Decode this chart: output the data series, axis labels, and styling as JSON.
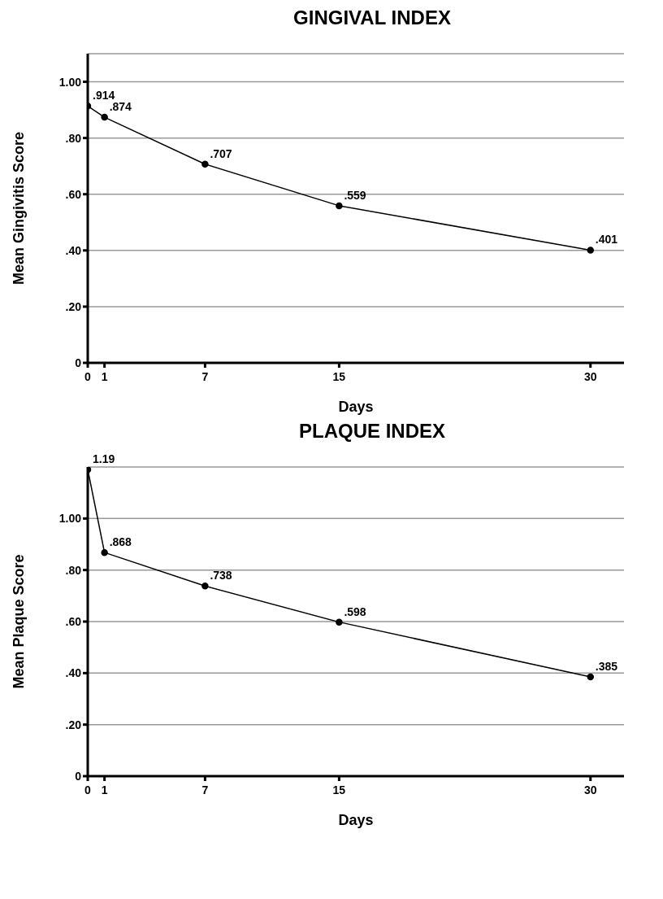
{
  "chart_data": [
    {
      "type": "line",
      "title": "GINGIVAL INDEX",
      "xlabel": "Days",
      "ylabel": "Mean Gingivitis Score",
      "x": [
        0,
        1,
        7,
        15,
        30
      ],
      "series": [
        {
          "color": "#000000",
          "values": [
            0.914,
            0.874,
            0.707,
            0.559,
            0.401
          ],
          "value_labels": [
            ".914",
            ".874",
            ".707",
            ".559",
            ".401"
          ]
        }
      ],
      "xlim": [
        0,
        32
      ],
      "xticks": [
        0,
        1,
        7,
        15,
        30
      ],
      "ylim": [
        0,
        1.1
      ],
      "yticks": [
        {
          "value": 0,
          "label": "0"
        },
        {
          "value": 0.2,
          "label": ".20"
        },
        {
          "value": 0.4,
          "label": ".40"
        },
        {
          "value": 0.6,
          "label": ".60"
        },
        {
          "value": 0.8,
          "label": ".80"
        },
        {
          "value": 1,
          "label": "1.00"
        }
      ],
      "grid": "y",
      "marker": "circle",
      "line_style": "solid",
      "legend": false
    },
    {
      "type": "line",
      "title": "PLAQUE INDEX",
      "xlabel": "Days",
      "ylabel": "Mean Plaque Score",
      "x": [
        0,
        1,
        7,
        15,
        30
      ],
      "series": [
        {
          "color": "#000000",
          "values": [
            1.19,
            0.868,
            0.738,
            0.598,
            0.385
          ],
          "value_labels": [
            "1.19",
            ".868",
            ".738",
            ".598",
            ".385"
          ]
        }
      ],
      "xlim": [
        0,
        32
      ],
      "xticks": [
        0,
        1,
        7,
        15,
        30
      ],
      "ylim": [
        0,
        1.2
      ],
      "yticks": [
        {
          "value": 0,
          "label": "0"
        },
        {
          "value": 0.2,
          "label": ".20"
        },
        {
          "value": 0.4,
          "label": ".40"
        },
        {
          "value": 0.6,
          "label": ".60"
        },
        {
          "value": 0.8,
          "label": ".80"
        },
        {
          "value": 1,
          "label": "1.00"
        }
      ],
      "grid": "y",
      "marker": "circle",
      "line_style": "solid",
      "legend": false
    }
  ]
}
